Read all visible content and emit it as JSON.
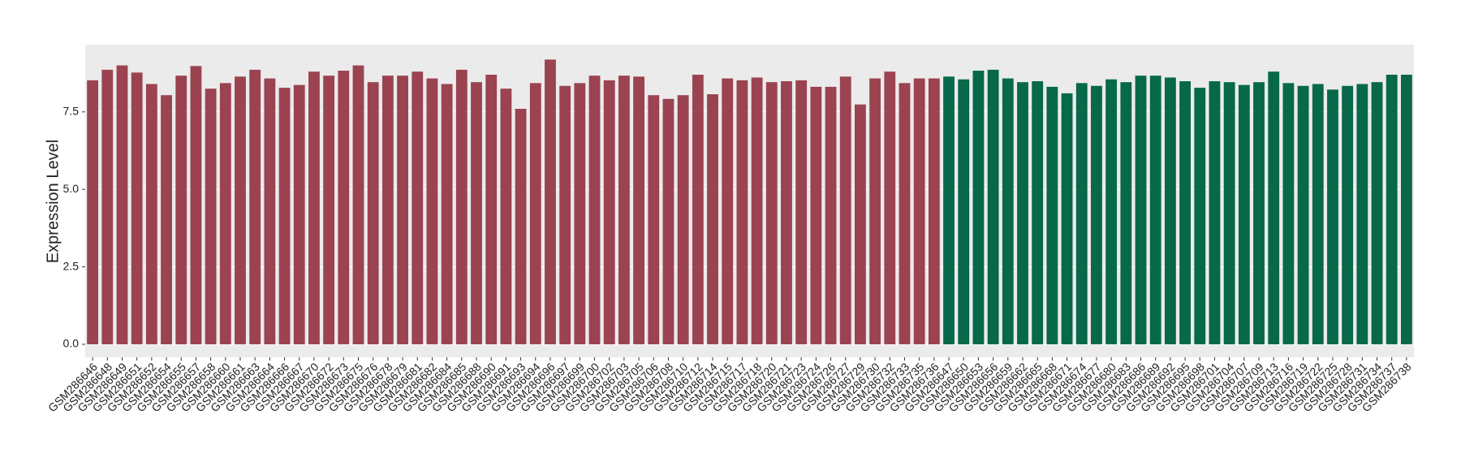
{
  "chart_data": {
    "type": "bar",
    "y_label": "Expression Level",
    "ylim": [
      -0.42,
      9.67
    ],
    "yticks": [
      {
        "value": 0,
        "label": "0.0"
      },
      2.5,
      {
        "value": 5,
        "label": "5.0"
      },
      7.5
    ],
    "grid": true,
    "series": [
      {
        "color": "#9b4350",
        "categories": [
          "GSM286646",
          "GSM286648",
          "GSM286649",
          "GSM286651",
          "GSM286652",
          "GSM286654",
          "GSM286655",
          "GSM286657",
          "GSM286658",
          "GSM286660",
          "GSM286661",
          "GSM286663",
          "GSM286664",
          "GSM286666",
          "GSM286667",
          "GSM286670",
          "GSM286672",
          "GSM286673",
          "GSM286675",
          "GSM286676",
          "GSM286678",
          "GSM286679",
          "GSM286681",
          "GSM286682",
          "GSM286684",
          "GSM286685",
          "GSM286688",
          "GSM286690",
          "GSM286691",
          "GSM286693",
          "GSM286694",
          "GSM286696",
          "GSM286697",
          "GSM286699",
          "GSM286700",
          "GSM286702",
          "GSM286703",
          "GSM286705",
          "GSM286706",
          "GSM286708",
          "GSM286710",
          "GSM286712",
          "GSM286714",
          "GSM286715",
          "GSM286717",
          "GSM286718",
          "GSM286720",
          "GSM286721",
          "GSM286723",
          "GSM286724",
          "GSM286726",
          "GSM286727",
          "GSM286729",
          "GSM286730",
          "GSM286732",
          "GSM286733",
          "GSM286735",
          "GSM286736"
        ],
        "values": [
          8.52,
          8.86,
          9.0,
          8.77,
          8.4,
          8.04,
          8.67,
          8.98,
          8.25,
          8.43,
          8.64,
          8.86,
          8.58,
          8.28,
          8.37,
          8.8,
          8.67,
          8.83,
          9.0,
          8.46,
          8.67,
          8.67,
          8.8,
          8.58,
          8.4,
          8.86,
          8.46,
          8.7,
          8.25,
          7.6,
          8.43,
          9.19,
          8.34,
          8.43,
          8.67,
          8.52,
          8.67,
          8.64,
          8.04,
          7.92,
          8.04,
          8.7,
          8.07,
          8.58,
          8.52,
          8.61,
          8.46,
          8.49,
          8.52,
          8.31,
          8.31,
          8.64,
          7.74,
          8.58,
          8.8,
          8.43,
          8.58,
          8.58
        ]
      },
      {
        "color": "#07684a",
        "categories": [
          "GSM286647",
          "GSM286650",
          "GSM286653",
          "GSM286656",
          "GSM286659",
          "GSM286662",
          "GSM286665",
          "GSM286668",
          "GSM286671",
          "GSM286674",
          "GSM286677",
          "GSM286680",
          "GSM286683",
          "GSM286686",
          "GSM286689",
          "GSM286692",
          "GSM286695",
          "GSM286698",
          "GSM286701",
          "GSM286704",
          "GSM286707",
          "GSM286709",
          "GSM286713",
          "GSM286716",
          "GSM286719",
          "GSM286722",
          "GSM286725",
          "GSM286728",
          "GSM286731",
          "GSM286734",
          "GSM286737",
          "GSM286738"
        ],
        "values": [
          8.64,
          8.55,
          8.83,
          8.86,
          8.58,
          8.46,
          8.49,
          8.31,
          8.1,
          8.43,
          8.34,
          8.55,
          8.46,
          8.67,
          8.67,
          8.61,
          8.49,
          8.28,
          8.49,
          8.46,
          8.37,
          8.46,
          8.8,
          8.43,
          8.34,
          8.4,
          8.22,
          8.34,
          8.4,
          8.46,
          8.7,
          8.7
        ]
      }
    ]
  }
}
